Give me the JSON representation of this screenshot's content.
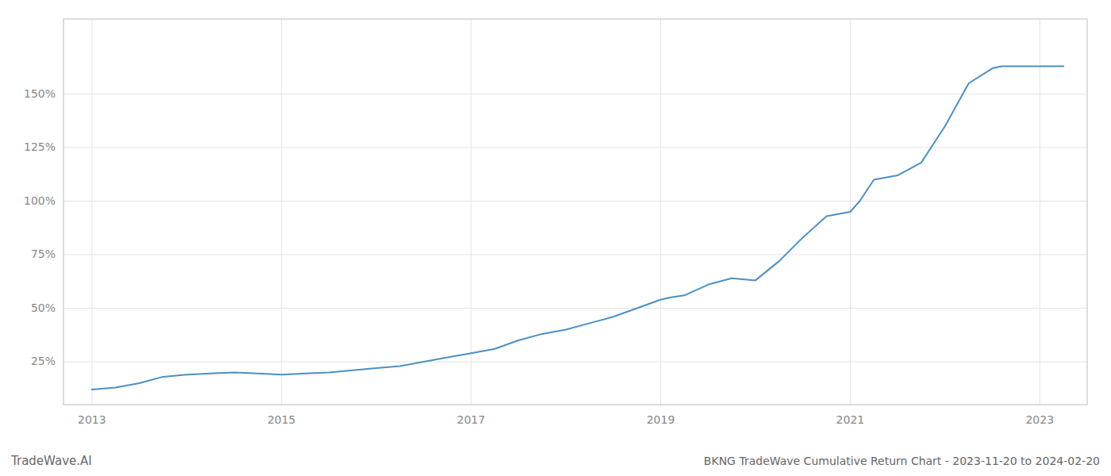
{
  "chart_data": {
    "type": "line",
    "title": "BKNG TradeWave Cumulative Return Chart - 2023-11-20 to 2024-02-20",
    "annotations": [
      "TradeWave.AI"
    ],
    "x": [
      2013.0,
      2013.25,
      2013.5,
      2013.75,
      2014.0,
      2014.25,
      2014.5,
      2014.75,
      2015.0,
      2015.25,
      2015.5,
      2015.75,
      2016.0,
      2016.25,
      2016.5,
      2016.75,
      2017.0,
      2017.25,
      2017.5,
      2017.75,
      2018.0,
      2018.25,
      2018.5,
      2018.75,
      2019.0,
      2019.1,
      2019.25,
      2019.5,
      2019.75,
      2020.0,
      2020.25,
      2020.5,
      2020.75,
      2021.0,
      2021.1,
      2021.25,
      2021.5,
      2021.75,
      2022.0,
      2022.25,
      2022.5,
      2022.6,
      2022.75,
      2023.0,
      2023.25
    ],
    "values": [
      12,
      13,
      15,
      18,
      19,
      19.5,
      20,
      19.5,
      19,
      19.5,
      20,
      21,
      22,
      23,
      25,
      27,
      29,
      31,
      35,
      38,
      40,
      43,
      46,
      50,
      54,
      55,
      56,
      61,
      64,
      63,
      72,
      83,
      93,
      95,
      100,
      110,
      112,
      118,
      135,
      155,
      162,
      163,
      163,
      163,
      163
    ],
    "color": "#4a90c4",
    "xlim": [
      2012.7,
      2023.5
    ],
    "ylim": [
      5,
      185
    ],
    "xticks": [
      2013,
      2015,
      2017,
      2019,
      2021,
      2023
    ],
    "yticks": [
      {
        "value": 25,
        "label": "25%"
      },
      {
        "value": 50,
        "label": "50%"
      },
      {
        "value": 75,
        "label": "75%"
      },
      {
        "value": 100,
        "label": "100%"
      },
      {
        "value": 125,
        "label": "125%"
      },
      {
        "value": 150,
        "label": "150%"
      }
    ],
    "grid": true
  }
}
